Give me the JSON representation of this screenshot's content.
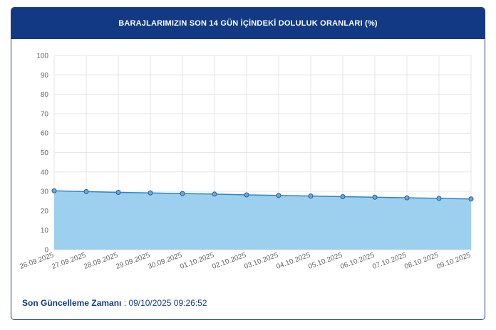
{
  "header": {
    "title": "BARAJLARIMIZIN SON 14 GÜN İÇİNDEKİ DOLULUK ORANLARI (%)"
  },
  "footer": {
    "label": "Son Güncelleme Zamanı",
    "separator": " : ",
    "value": "09/10/2025 09:26:52"
  },
  "colors": {
    "header_bg": "#123a84",
    "line": "#2d86c7",
    "area": "#9dd0ee",
    "point_fill": "#6aa8d8",
    "point_stroke": "#2a5a9a",
    "grid": "#e6e6e6",
    "tick_text": "#666666"
  },
  "chart_data": {
    "type": "area",
    "title": "",
    "xlabel": "",
    "ylabel": "",
    "ylim": [
      0,
      100
    ],
    "yticks": [
      0,
      10,
      20,
      30,
      40,
      50,
      60,
      70,
      80,
      90,
      100
    ],
    "grid": true,
    "categories": [
      "26.09.2025",
      "27.09.2025",
      "28.09.2025",
      "29.09.2025",
      "30.09.2025",
      "01.10.2025",
      "02.10.2025",
      "03.10.2025",
      "04.10.2025",
      "05.10.2025",
      "06.10.2025",
      "07.10.2025",
      "08.10.2025",
      "09.10.2025"
    ],
    "series": [
      {
        "values": [
          30.3,
          29.9,
          29.5,
          29.2,
          28.9,
          28.6,
          28.2,
          27.9,
          27.6,
          27.3,
          27.0,
          26.7,
          26.4,
          26.1
        ]
      }
    ]
  }
}
